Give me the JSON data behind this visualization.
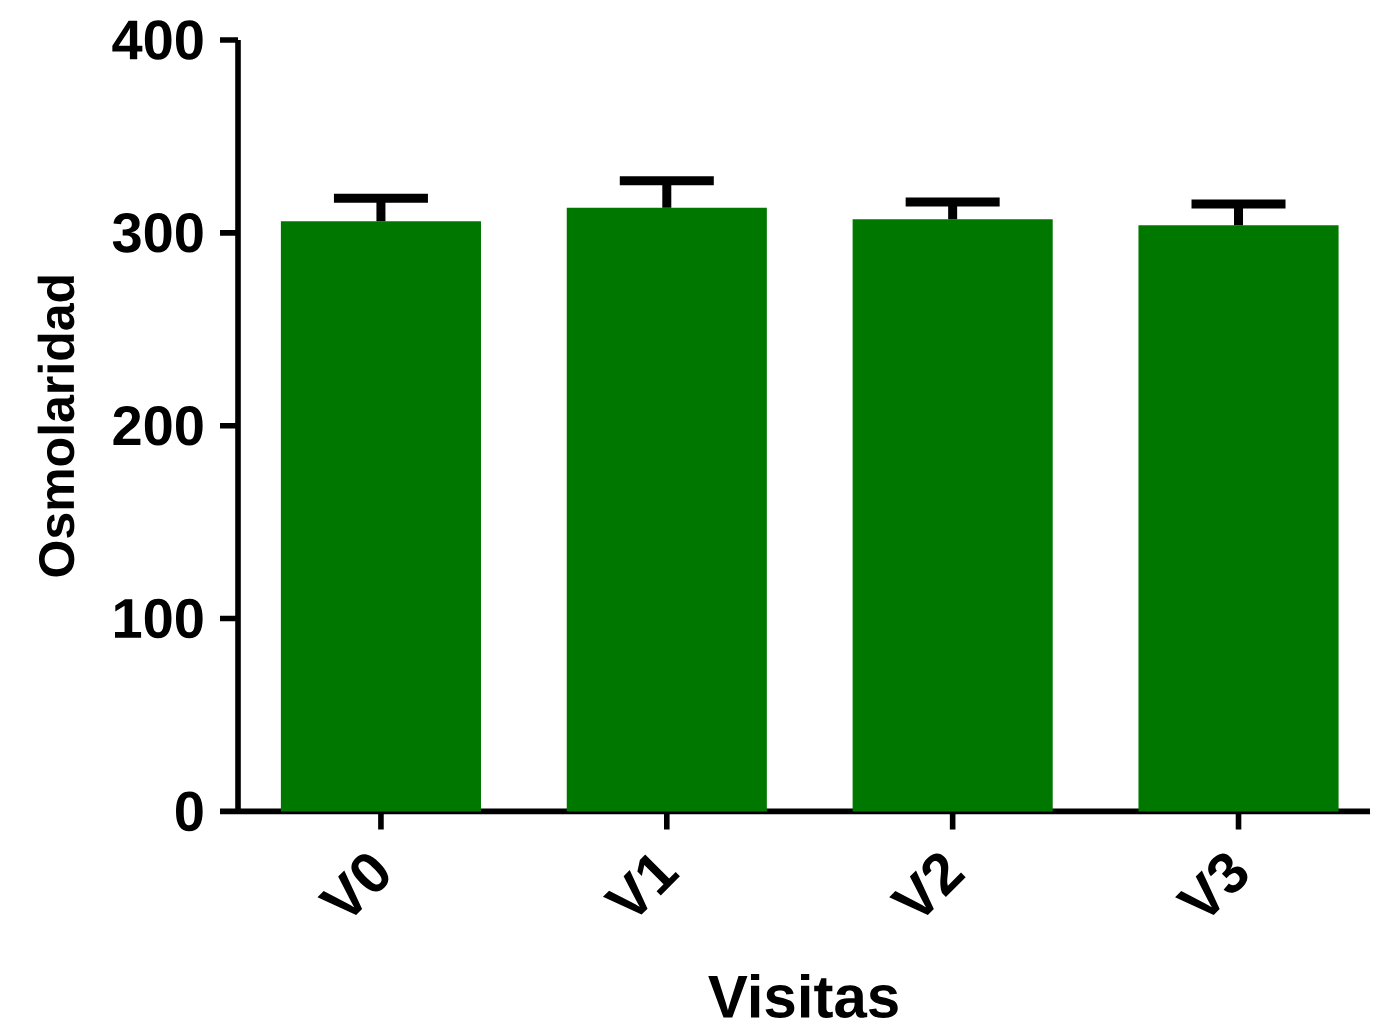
{
  "chart_data": {
    "type": "bar",
    "xlabel": "Visitas",
    "ylabel": "Osmolaridad",
    "categories": [
      "V0",
      "V1",
      "V2",
      "V3"
    ],
    "values": [
      306,
      313,
      307,
      304
    ],
    "errors": [
      [
        306,
        318
      ],
      [
        313,
        327
      ],
      [
        307,
        316
      ],
      [
        304,
        315
      ]
    ],
    "color": "#007800",
    "ylim": [
      0,
      400
    ],
    "yticks": [
      0,
      100,
      200,
      300,
      400
    ]
  }
}
